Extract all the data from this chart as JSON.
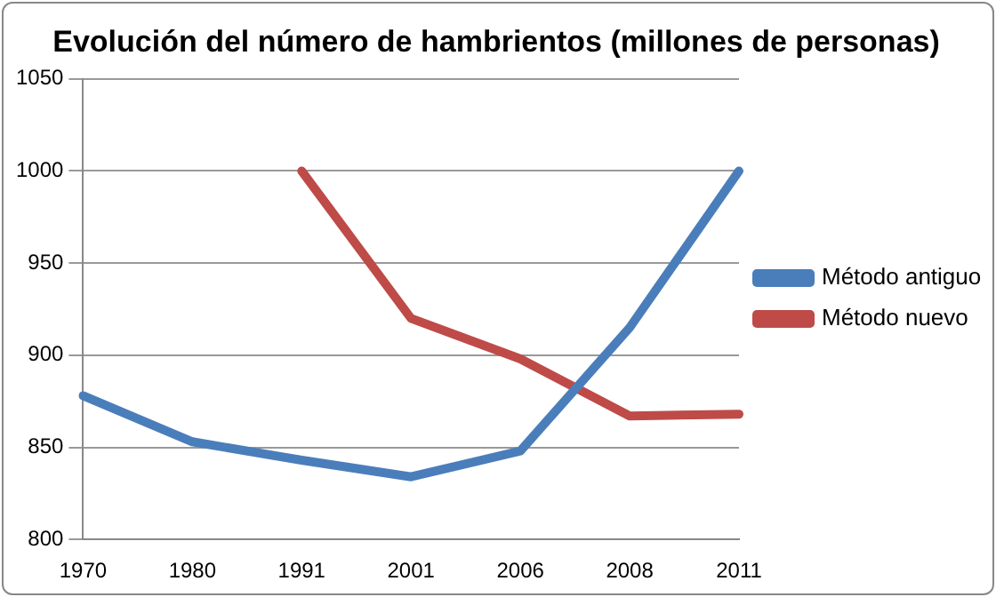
{
  "chart_data": {
    "type": "line",
    "title": "Evolución del número de hambrientos (millones de personas)",
    "categories": [
      "1970",
      "1980",
      "1991",
      "2001",
      "2006",
      "2008",
      "2011"
    ],
    "series": [
      {
        "name": "Método antiguo",
        "color": "#4a7ebb",
        "values": [
          878,
          853,
          843,
          834,
          848,
          915,
          1000
        ]
      },
      {
        "name": "Método nuevo",
        "color": "#be4b48",
        "values": [
          null,
          null,
          1000,
          920,
          898,
          867,
          868
        ]
      }
    ],
    "ylim": [
      800,
      1050
    ],
    "yticks": [
      800,
      850,
      900,
      950,
      1000,
      1050
    ],
    "grid": "y",
    "legend": "right",
    "marker": "none",
    "line_style": "solid"
  }
}
